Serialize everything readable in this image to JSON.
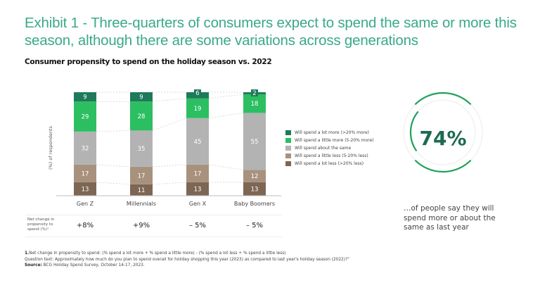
{
  "title": "Exhibit 1 - Three-quarters of consumers expect to spend the same or more this season, although there are some variations across generations",
  "subtitle": "Consumer propensity to spend on the holiday season vs. 2022",
  "chart_data": {
    "type": "bar",
    "stacked": true,
    "title": "Consumer propensity to spend on the holiday season vs. 2022",
    "xlabel": "",
    "ylabel": "(%) of respondents",
    "ylim": [
      0,
      100
    ],
    "grid": false,
    "legend_position": "right",
    "categories": [
      "Gen Z",
      "Millennials",
      "Gen X",
      "Baby Boomers"
    ],
    "series": [
      {
        "name": "Will spend a lot less (>20% less)",
        "color": "#7d6654",
        "values": [
          13,
          11,
          13,
          13
        ]
      },
      {
        "name": "Will spend a little less (5-20% less)",
        "color": "#a8927e",
        "values": [
          17,
          17,
          17,
          12
        ]
      },
      {
        "name": "Will spend about the same",
        "color": "#b3b3b3",
        "values": [
          32,
          35,
          45,
          55
        ]
      },
      {
        "name": "Will spend a little more (5-20% more)",
        "color": "#2bbf62",
        "values": [
          29,
          28,
          19,
          18
        ]
      },
      {
        "name": "Will spend a lot more (>20% more)",
        "color": "#1e7a58",
        "values": [
          9,
          9,
          6,
          2
        ]
      }
    ],
    "legend_order": [
      "Will spend a lot more (>20% more)",
      "Will spend a little more (5-20% more)",
      "Will spend about the same",
      "Will spend a little less (5-20% less)",
      "Will spend a lot less (>20% less)"
    ]
  },
  "net_change": {
    "label": "Net change in propensity to spend (%)¹",
    "values": [
      "+8%",
      "+9%",
      "– 5%",
      "– 5%"
    ]
  },
  "highlight": {
    "value_pct": 74,
    "value_text": "74%",
    "caption": "…of people say they will spend more or about the same as last year",
    "accent_color": "#1fa05a"
  },
  "footnotes": {
    "note1_num": "1.",
    "note1": "Net change in propensity to spend: (% spend a lot more + % spend a little more) - (% spend a lot less + % spend a little less)",
    "question": "Question text: Approximately how much do you plan to spend overall for holiday shopping this year (2023) as compared to last year's holiday season (2022)?\"",
    "source_label": "Source:",
    "source": " BCG Holiday Spend Survey, October 14-17, 2023."
  }
}
